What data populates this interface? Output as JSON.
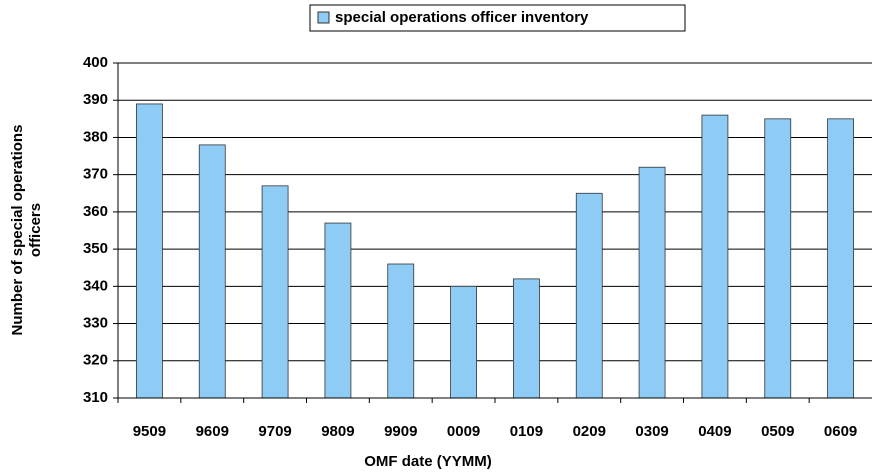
{
  "chart_data": {
    "type": "bar",
    "categories": [
      "9509",
      "9609",
      "9709",
      "9809",
      "9909",
      "0009",
      "0109",
      "0209",
      "0309",
      "0409",
      "0509",
      "0609"
    ],
    "series": [
      {
        "name": "special operations officer inventory",
        "color": "#8ecbf5",
        "values": [
          389,
          378,
          367,
          357,
          346,
          340,
          342,
          365,
          372,
          386,
          385,
          385
        ]
      }
    ],
    "xlabel": "OMF date (YYMM)",
    "ylabel": [
      "Number of special operations",
      "officers"
    ],
    "ylim": [
      310,
      400
    ],
    "yticks": [
      310,
      320,
      330,
      340,
      350,
      360,
      370,
      380,
      390,
      400
    ],
    "grid": true,
    "legend": "top"
  }
}
